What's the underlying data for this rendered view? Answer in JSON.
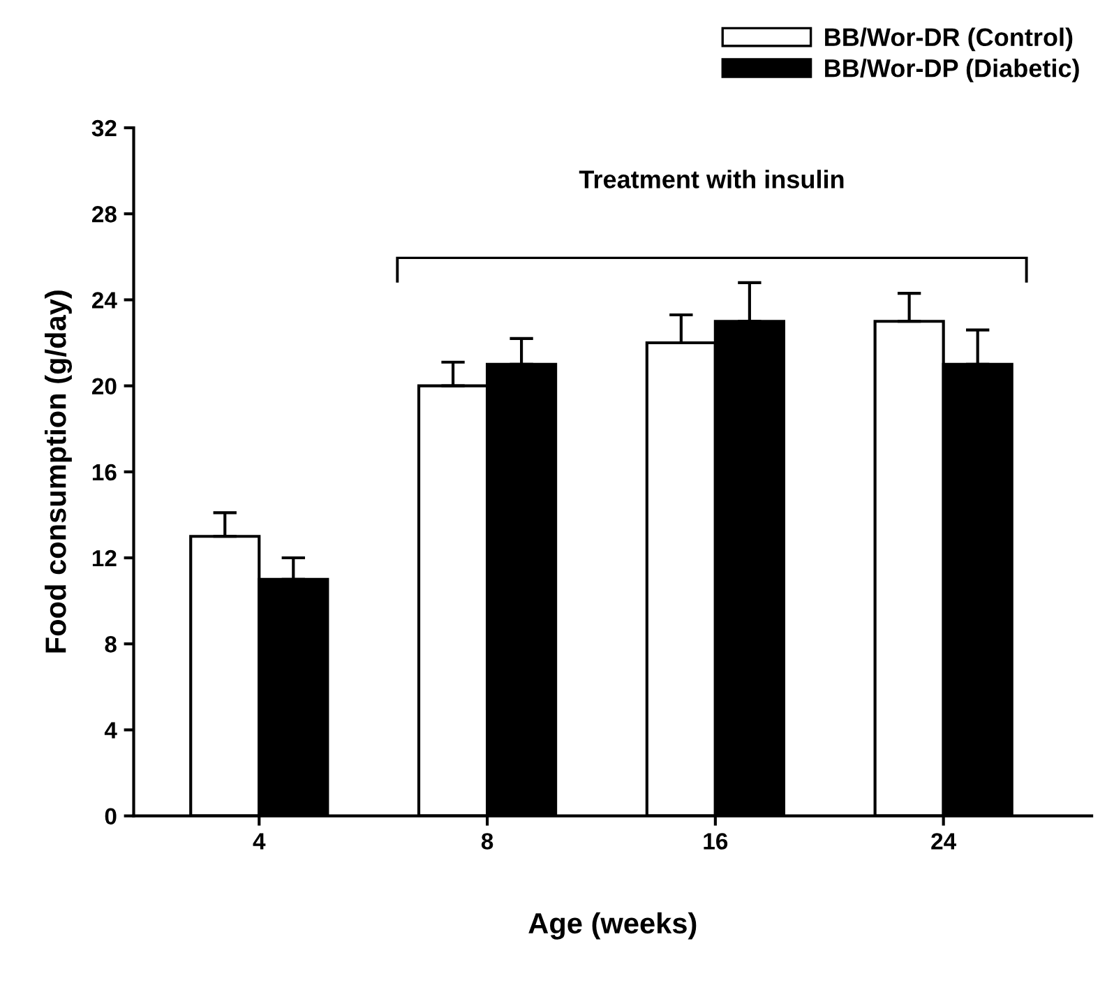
{
  "chart_data": {
    "type": "bar",
    "xlabel": "Age (weeks)",
    "ylabel": "Food consumption (g/day)",
    "categories": [
      "4",
      "8",
      "16",
      "24"
    ],
    "series": [
      {
        "name": "BB/Wor-DR (Control)",
        "color": "#ffffff",
        "values": [
          13,
          20,
          22,
          23
        ],
        "errors": [
          1.1,
          1.1,
          1.3,
          1.3
        ]
      },
      {
        "name": "BB/Wor-DP (Diabetic)",
        "color": "#000000",
        "values": [
          11,
          21,
          23,
          21
        ],
        "errors": [
          1.0,
          1.2,
          1.8,
          1.6
        ]
      }
    ],
    "ylim": [
      0,
      32
    ],
    "yticks": [
      0,
      4,
      8,
      12,
      16,
      20,
      24,
      28,
      32
    ],
    "grid": false,
    "legend": "top right",
    "annotations": [
      "Treatment with insulin"
    ]
  }
}
